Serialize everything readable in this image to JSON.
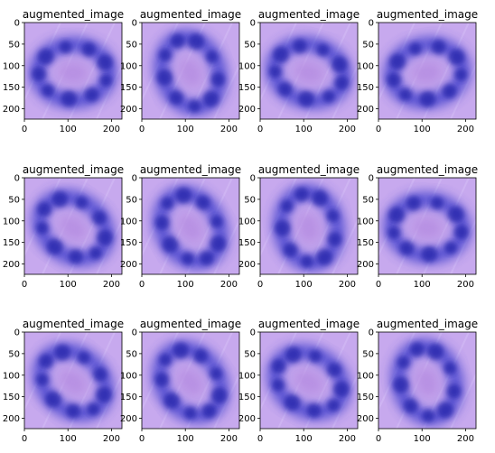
{
  "chart_data": {
    "type": "image-grid",
    "rows": 3,
    "cols": 4,
    "xlim": [
      0,
      224
    ],
    "ylim": [
      224,
      0
    ],
    "xticks": [
      0,
      100,
      200
    ],
    "yticks": [
      0,
      50,
      100,
      150,
      200
    ],
    "colors": {
      "background": "#c7a9ee",
      "stain": "#3c3ccc",
      "stain_dark": "#2020a8",
      "center": "#b68ee2"
    },
    "panels": [
      {
        "title": "augmented_image",
        "ring_angle": 0,
        "flip": false
      },
      {
        "title": "augmented_image",
        "ring_angle": 70,
        "flip": false
      },
      {
        "title": "augmented_image",
        "ring_angle": 15,
        "flip": true
      },
      {
        "title": "augmented_image",
        "ring_angle": -10,
        "flip": false
      },
      {
        "title": "augmented_image",
        "ring_angle": 35,
        "flip": false
      },
      {
        "title": "augmented_image",
        "ring_angle": 60,
        "flip": true
      },
      {
        "title": "augmented_image",
        "ring_angle": 80,
        "flip": false
      },
      {
        "title": "augmented_image",
        "ring_angle": 5,
        "flip": true
      },
      {
        "title": "augmented_image",
        "ring_angle": 40,
        "flip": false
      },
      {
        "title": "augmented_image",
        "ring_angle": 55,
        "flip": true
      },
      {
        "title": "augmented_image",
        "ring_angle": 30,
        "flip": false
      },
      {
        "title": "augmented_image",
        "ring_angle": 75,
        "flip": false
      }
    ]
  }
}
